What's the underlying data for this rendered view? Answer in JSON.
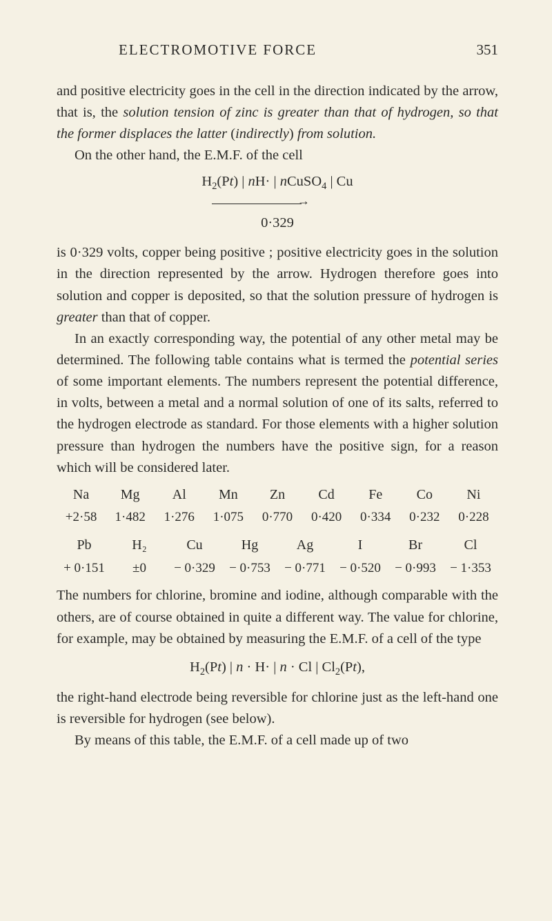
{
  "header": {
    "title": "ELECTROMOTIVE FORCE",
    "page_number": "351"
  },
  "p1": "and positive electricity goes in the cell in the direction indicated by the arrow, that is, the ",
  "p1_i1": "solution tension of zinc is greater than that of hydrogen, so that the former displaces the latter",
  "p1_mid": " (",
  "p1_i2": "indirectly",
  "p1_tail": ") ",
  "p1_i3": "from solution.",
  "p2": "On the other hand, the E.M.F. of the cell",
  "formula1_a": "H",
  "formula1_b": "(P",
  "formula1_c": ") | ",
  "formula1_d": "H· | ",
  "formula1_e": "CuSO",
  "formula1_f": " | Cu",
  "formula1_n": "n",
  "value1": "0·329",
  "p3": "is 0·329 volts, copper being positive ; positive electricity goes in the solution in the direction represented by the arrow. Hydrogen therefore goes into solution and copper is deposited, so that the solution pressure of hydrogen is ",
  "p3_i": "greater",
  "p3_tail": " than that of copper.",
  "p4": "In an exactly corresponding way, the potential of any other metal may be determined. The following table contains what is termed the ",
  "p4_i": "potential series",
  "p4_tail": " of some important elements. The numbers represent the potential difference, in volts, between a metal and a normal solution of one of its salts, referred to the hydrogen electrode as standard. For those elements with a higher solution pressure than hydrogen the numbers have the positive sign, for a reason which will be considered later.",
  "table1": {
    "h": [
      "Na",
      "Mg",
      "Al",
      "Mn",
      "Zn",
      "Cd",
      "Fe",
      "Co",
      "Ni"
    ],
    "v": [
      "+2·58",
      "1·482",
      "1·276",
      "1·075",
      "0·770",
      "0·420",
      "0·334",
      "0·232",
      "0·228"
    ]
  },
  "table2": {
    "h": [
      "Pb",
      "H₂",
      "Cu",
      "Hg",
      "Ag",
      "I",
      "Br",
      "Cl"
    ],
    "v": [
      "+ 0·151",
      "±0",
      "− 0·329",
      "− 0·753",
      "− 0·771",
      "− 0·520",
      "− 0·993",
      "− 1·353"
    ]
  },
  "p5": "The numbers for chlorine, bromine and iodine, although comparable with the others, are of course obtained in quite a different way. The value for chlorine, for example, may be obtained by measuring the E.M.F. of a cell of the type",
  "formula2_a": "H",
  "formula2_b": "(P",
  "formula2_c": ") | ",
  "formula2_d": " · H· | ",
  "formula2_e": " · Cl | Cl",
  "formula2_f": "(P",
  "formula2_g": "),",
  "formula2_n": "n",
  "formula2_t": "t",
  "p6": "the right-hand electrode being reversible for chlorine just as the left-hand one is reversible for hydrogen (see below).",
  "p7": "By means of this table, the E.M.F. of a cell made up of two"
}
